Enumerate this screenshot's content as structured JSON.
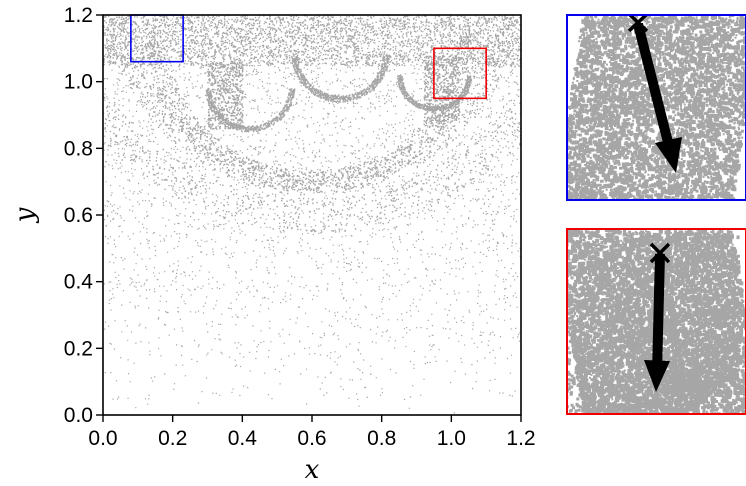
{
  "chart_data": [
    {
      "type": "scatter",
      "xlabel": "x",
      "ylabel": "y",
      "xlim": [
        0.0,
        1.2
      ],
      "ylim": [
        0.0,
        1.2
      ],
      "xticks": [
        "0.0",
        "0.2",
        "0.4",
        "0.6",
        "0.8",
        "1.0",
        "1.2"
      ],
      "yticks": [
        "0.0",
        "0.2",
        "0.4",
        "0.6",
        "0.8",
        "1.0",
        "1.2"
      ],
      "grid": false,
      "point_color": "#a6a6a6",
      "highlight_boxes": [
        {
          "color": "#0000ee",
          "x": [
            0.08,
            0.23
          ],
          "y": [
            1.06,
            1.2
          ]
        },
        {
          "color": "#ee0000",
          "x": [
            0.95,
            1.1
          ],
          "y": [
            0.95,
            1.1
          ]
        }
      ]
    },
    {
      "type": "scatter",
      "border_color": "#0000ee",
      "point_color": "#a6a6a6",
      "marker": "x",
      "arrow_color": "#000000"
    },
    {
      "type": "scatter",
      "border_color": "#ee0000",
      "point_color": "#a6a6a6",
      "marker": "x",
      "arrow_color": "#000000"
    }
  ]
}
